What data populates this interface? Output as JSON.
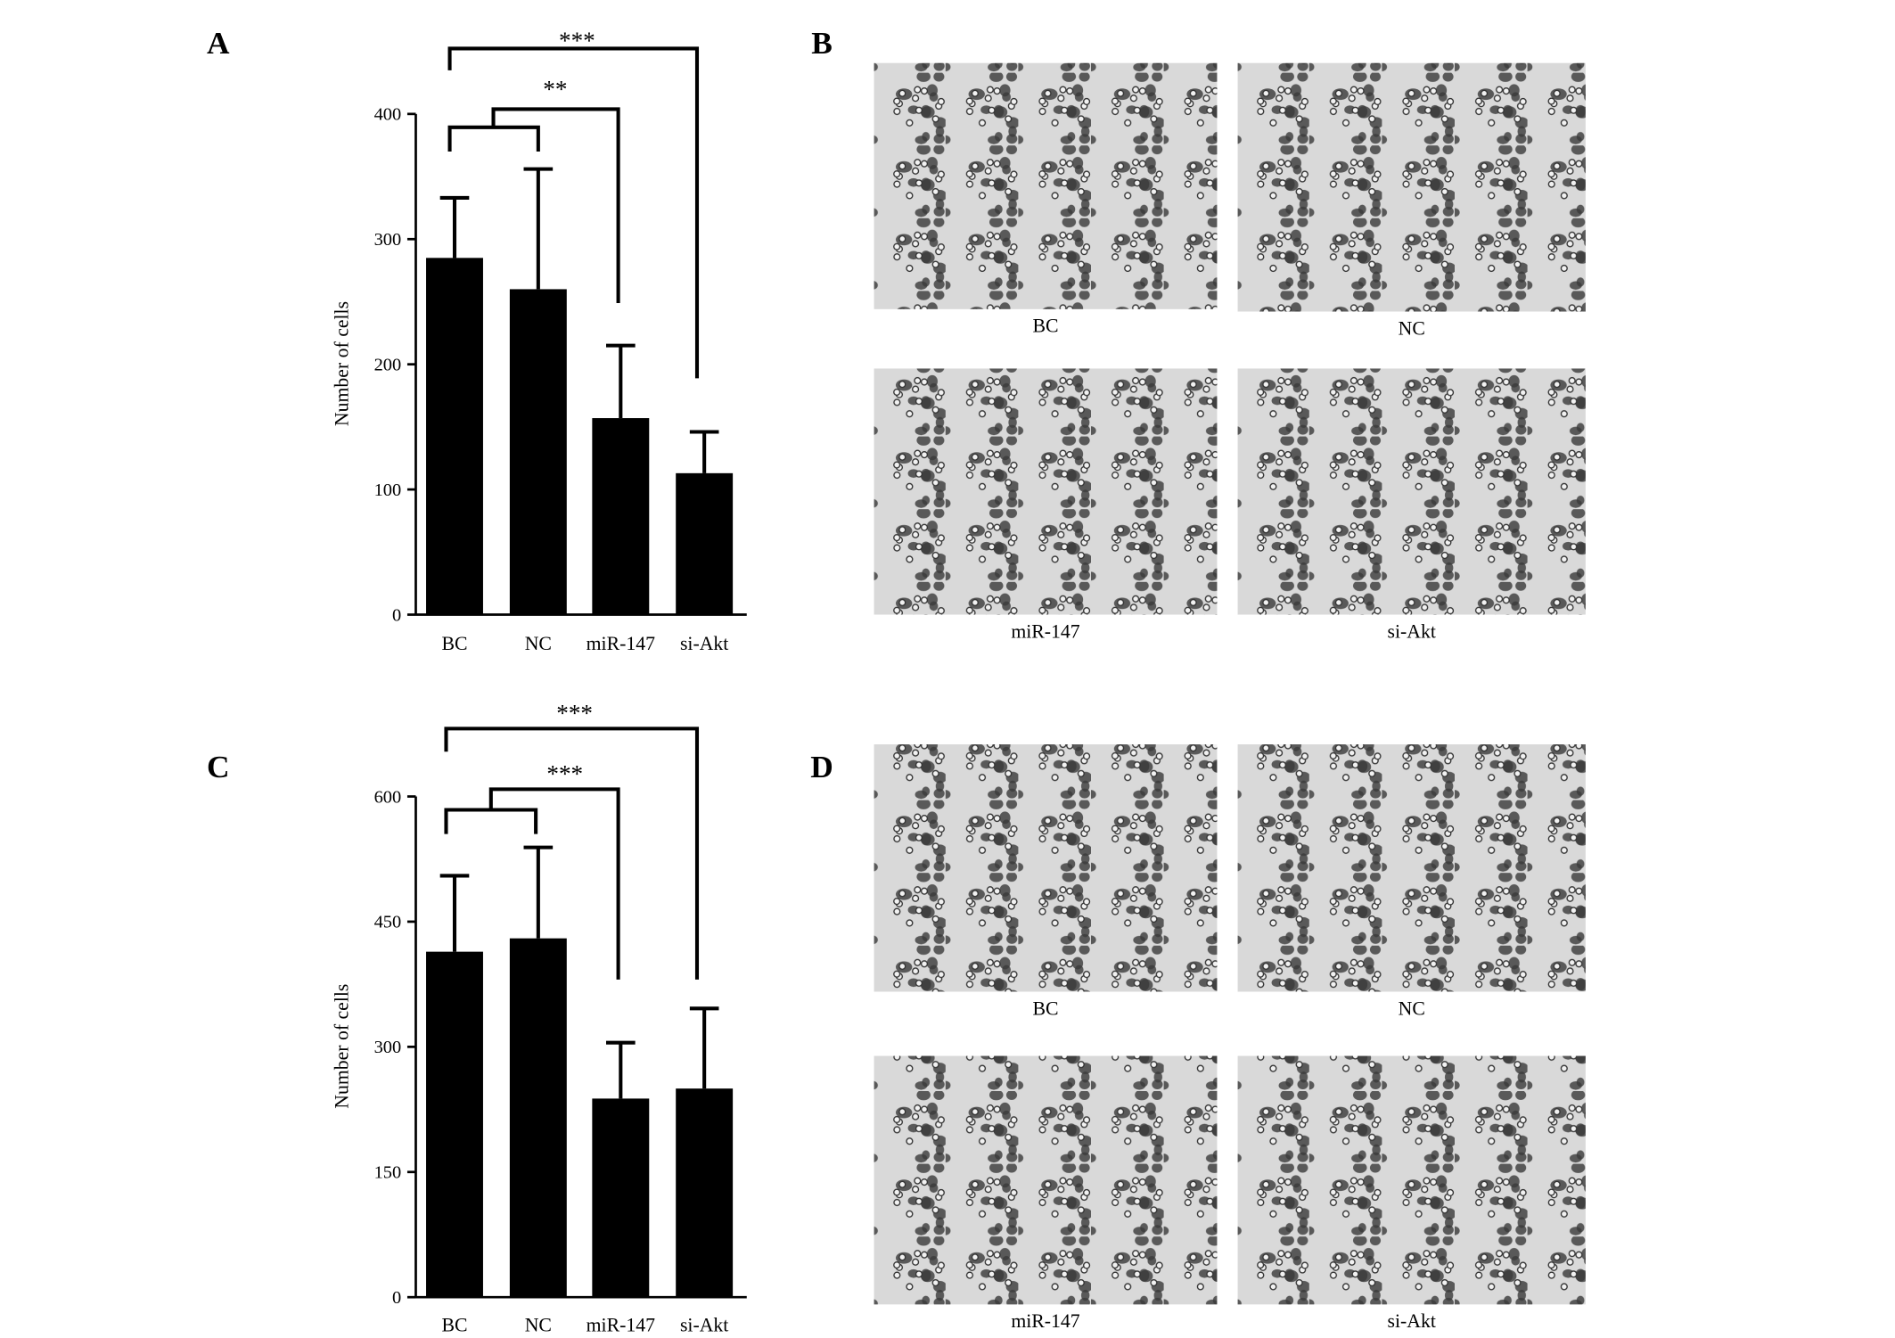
{
  "panel_labels": [
    "A",
    "B",
    "C",
    "D"
  ],
  "chart_data": [
    {
      "type": "bar",
      "y_label": "Number of cells",
      "categories": [
        "BC",
        "NC",
        "miR-147",
        "si-Akt"
      ],
      "values": [
        285,
        260,
        157,
        113
      ],
      "errors": [
        48,
        96,
        58,
        33
      ],
      "color": "#000000",
      "ylim": [
        0,
        400
      ],
      "yticks": [
        0,
        100,
        200,
        300,
        400
      ],
      "grid": false,
      "annotations": [
        "***",
        "**"
      ]
    },
    {
      "type": "bar",
      "y_label": "Number of cells",
      "categories": [
        "BC",
        "NC",
        "miR-147",
        "si-Akt"
      ],
      "values": [
        414,
        430,
        238,
        250
      ],
      "errors": [
        91,
        109,
        67,
        96
      ],
      "color": "#000000",
      "ylim": [
        0,
        600
      ],
      "yticks": [
        0,
        150,
        300,
        450,
        600
      ],
      "grid": false,
      "annotations": [
        "***",
        "***"
      ]
    }
  ],
  "image_captions": [
    [
      "BC",
      "NC",
      "miR-147",
      "si-Akt"
    ],
    [
      "BC",
      "NC",
      "miR-147",
      "si-Akt"
    ]
  ]
}
